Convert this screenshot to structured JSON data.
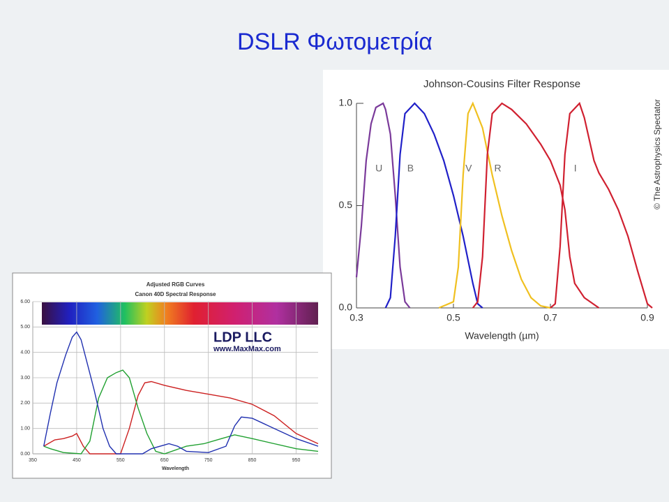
{
  "title": "DSLR Φωτομετρία",
  "chart_data": [
    {
      "type": "line",
      "title": "Adjusted RGB Curves",
      "subtitle": "Canon 40D Spectral Response",
      "annotations": [
        "LDP LLC",
        "www.MaxMax.com"
      ],
      "x_label": "Wavelength",
      "xlim": [
        350,
        1000
      ],
      "ylim": [
        0,
        6
      ],
      "xticks": [
        350,
        450,
        550,
        650,
        750,
        850,
        950
      ],
      "yticks": [
        {
          "value": 0,
          "label": "0.00"
        },
        {
          "value": 1,
          "label": "1.00"
        },
        {
          "value": 2,
          "label": "2.00"
        },
        {
          "value": 3,
          "label": "3.00"
        },
        {
          "value": 4,
          "label": "4.00"
        },
        {
          "value": 5,
          "label": "5.00"
        },
        {
          "value": 6,
          "label": "6.00"
        }
      ],
      "grid": true,
      "series": [
        {
          "color": "#cc2020",
          "x": [
            375,
            400,
            420,
            440,
            450,
            465,
            480,
            550,
            570,
            590,
            605,
            620,
            650,
            700,
            750,
            800,
            850,
            900,
            950,
            1000
          ],
          "values": [
            0.3,
            0.55,
            0.6,
            0.7,
            0.8,
            0.3,
            0,
            0,
            1.0,
            2.3,
            2.8,
            2.85,
            2.7,
            2.5,
            2.35,
            2.2,
            1.95,
            1.5,
            0.8,
            0.4
          ]
        },
        {
          "color": "#20a030",
          "x": [
            375,
            390,
            420,
            460,
            480,
            500,
            520,
            540,
            555,
            570,
            590,
            610,
            630,
            650,
            700,
            740,
            780,
            810,
            850,
            900,
            950,
            1000
          ],
          "values": [
            0.3,
            0.2,
            0.05,
            0,
            0.5,
            2.2,
            3.0,
            3.2,
            3.3,
            3.0,
            1.8,
            0.8,
            0.1,
            0,
            0.3,
            0.4,
            0.6,
            0.75,
            0.6,
            0.4,
            0.2,
            0.1
          ]
        },
        {
          "color": "#2030b0",
          "x": [
            375,
            390,
            405,
            425,
            440,
            450,
            460,
            475,
            490,
            510,
            525,
            540,
            600,
            620,
            650,
            660,
            680,
            700,
            750,
            790,
            810,
            825,
            850,
            900,
            950,
            1000
          ],
          "values": [
            0.3,
            1.6,
            2.8,
            3.9,
            4.6,
            4.8,
            4.5,
            3.5,
            2.5,
            1.0,
            0.3,
            0,
            0,
            0.2,
            0.35,
            0.4,
            0.3,
            0.1,
            0.05,
            0.3,
            1.1,
            1.45,
            1.4,
            1.0,
            0.6,
            0.3
          ]
        }
      ]
    },
    {
      "type": "line",
      "title": "Johnson-Cousins Filter Response",
      "credit": "© The Astrophysics Spectator",
      "x_label": "Wavelength (µm)",
      "xlim": [
        0.3,
        0.9
      ],
      "ylim": [
        0,
        1
      ],
      "xticks": [
        0.3,
        0.5,
        0.7,
        0.9
      ],
      "yticks": [
        {
          "value": 0,
          "label": "0.0"
        },
        {
          "value": 0.5,
          "label": "0.5"
        },
        {
          "value": 1,
          "label": "1.0"
        }
      ],
      "grid": false,
      "series": [
        {
          "name": "U",
          "color": "#7a3a9a",
          "x": [
            0.3,
            0.31,
            0.32,
            0.33,
            0.34,
            0.355,
            0.36,
            0.37,
            0.38,
            0.39,
            0.4,
            0.41
          ],
          "values": [
            0.15,
            0.4,
            0.72,
            0.9,
            0.98,
            1.0,
            0.97,
            0.85,
            0.55,
            0.2,
            0.03,
            0
          ]
        },
        {
          "name": "B",
          "color": "#2020c8",
          "x": [
            0.36,
            0.37,
            0.38,
            0.39,
            0.4,
            0.42,
            0.44,
            0.46,
            0.48,
            0.5,
            0.52,
            0.54,
            0.55,
            0.56
          ],
          "values": [
            0,
            0.05,
            0.35,
            0.75,
            0.95,
            1.0,
            0.95,
            0.85,
            0.72,
            0.55,
            0.35,
            0.12,
            0.02,
            0
          ]
        },
        {
          "name": "V",
          "color": "#f0c020",
          "x": [
            0.47,
            0.5,
            0.51,
            0.52,
            0.53,
            0.54,
            0.56,
            0.58,
            0.6,
            0.62,
            0.64,
            0.66,
            0.68,
            0.7
          ],
          "values": [
            0,
            0.03,
            0.2,
            0.65,
            0.95,
            1.0,
            0.88,
            0.65,
            0.45,
            0.28,
            0.14,
            0.05,
            0.01,
            0
          ]
        },
        {
          "name": "R",
          "color": "#d02030",
          "x": [
            0.54,
            0.55,
            0.56,
            0.57,
            0.58,
            0.6,
            0.62,
            0.65,
            0.68,
            0.7,
            0.72,
            0.73,
            0.74,
            0.75,
            0.77,
            0.8
          ],
          "values": [
            0,
            0.03,
            0.25,
            0.75,
            0.95,
            1.0,
            0.97,
            0.9,
            0.8,
            0.72,
            0.6,
            0.48,
            0.25,
            0.12,
            0.05,
            0
          ]
        },
        {
          "name": "I",
          "color": "#d02030",
          "x": [
            0.7,
            0.71,
            0.72,
            0.73,
            0.74,
            0.76,
            0.77,
            0.79,
            0.8,
            0.82,
            0.84,
            0.86,
            0.88,
            0.9,
            0.91
          ],
          "values": [
            0,
            0.02,
            0.3,
            0.75,
            0.95,
            1.0,
            0.93,
            0.72,
            0.66,
            0.58,
            0.48,
            0.35,
            0.18,
            0.02,
            0
          ]
        }
      ]
    }
  ]
}
